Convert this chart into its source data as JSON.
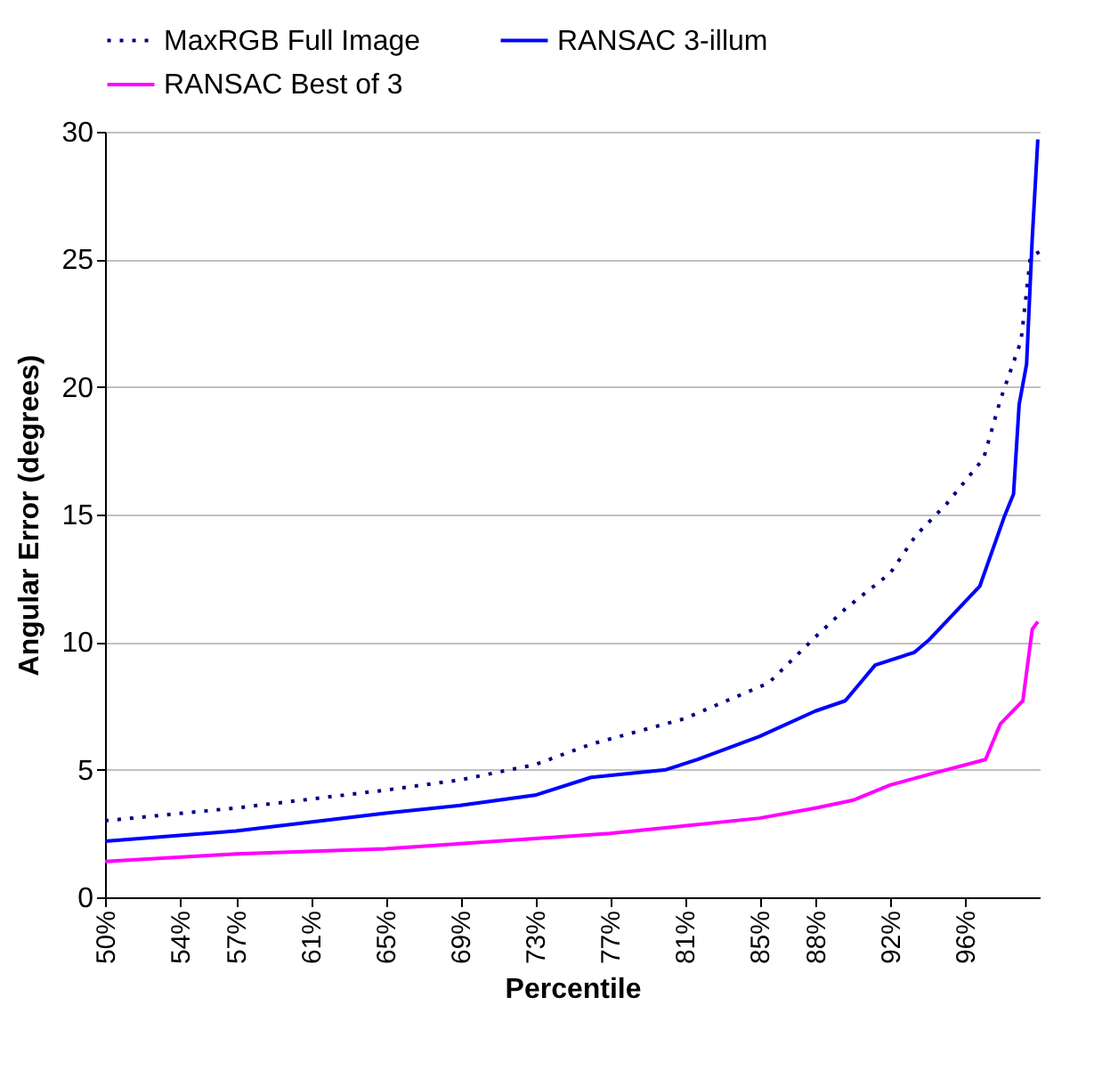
{
  "chart_data": {
    "type": "line",
    "xlabel": "Percentile",
    "ylabel": "Angular Error (degrees)",
    "xlim": [
      50,
      100
    ],
    "ylim": [
      0,
      30
    ],
    "yticks": [
      0,
      5,
      10,
      15,
      20,
      25,
      30
    ],
    "xticks": [
      {
        "value": 50,
        "label": "50%"
      },
      {
        "value": 54,
        "label": "54%"
      },
      {
        "value": 57,
        "label": "57%"
      },
      {
        "value": 61,
        "label": "61%"
      },
      {
        "value": 65,
        "label": "65%"
      },
      {
        "value": 69,
        "label": "69%"
      },
      {
        "value": 73,
        "label": "73%"
      },
      {
        "value": 77,
        "label": "77%"
      },
      {
        "value": 81,
        "label": "81%"
      },
      {
        "value": 85,
        "label": "85%"
      },
      {
        "value": 88,
        "label": "88%"
      },
      {
        "value": 92,
        "label": "92%"
      },
      {
        "value": 96,
        "label": "96%"
      }
    ],
    "grid": "y",
    "legend": "top",
    "marker": "none",
    "series": [
      {
        "name": "MaxRGB Full Image",
        "color": "#000080",
        "line_style": "dotted",
        "x": [
          50,
          57,
          65,
          69,
          73,
          76,
          81,
          85.5,
          88,
          89.6,
          92,
          93.4,
          95,
          97,
          97.9,
          99,
          99.4,
          99.5,
          100
        ],
        "values": [
          3.0,
          3.5,
          4.2,
          4.6,
          5.2,
          6.0,
          7.0,
          8.4,
          10.2,
          11.3,
          12.7,
          14.2,
          15.4,
          17.2,
          19.5,
          21.8,
          24.4,
          25.1,
          25.3
        ]
      },
      {
        "name": "RANSAC 3-illum",
        "color": "#0000ff",
        "line_style": "solid",
        "x": [
          50,
          57,
          65,
          69,
          73,
          76,
          80,
          81.7,
          85,
          88,
          89.6,
          91.2,
          93.3,
          94.1,
          96.8,
          98.1,
          98.6,
          98.9,
          99.3,
          99.6,
          99.9
        ],
        "values": [
          2.2,
          2.6,
          3.3,
          3.6,
          4.0,
          4.7,
          5.0,
          5.4,
          6.3,
          7.3,
          7.7,
          9.1,
          9.6,
          10.1,
          12.2,
          14.9,
          15.8,
          19.3,
          20.9,
          25.8,
          29.7
        ]
      },
      {
        "name": "RANSAC Best of 3",
        "color": "#ff00ff",
        "line_style": "solid",
        "x": [
          50,
          57,
          65,
          69,
          73,
          77,
          81,
          85,
          88,
          90,
          92,
          94,
          97.1,
          97.9,
          98.7,
          99.1,
          99.6,
          99.9
        ],
        "values": [
          1.4,
          1.7,
          1.9,
          2.1,
          2.3,
          2.5,
          2.8,
          3.1,
          3.5,
          3.8,
          4.4,
          4.8,
          5.4,
          6.8,
          7.4,
          7.7,
          10.5,
          10.8
        ]
      }
    ]
  }
}
